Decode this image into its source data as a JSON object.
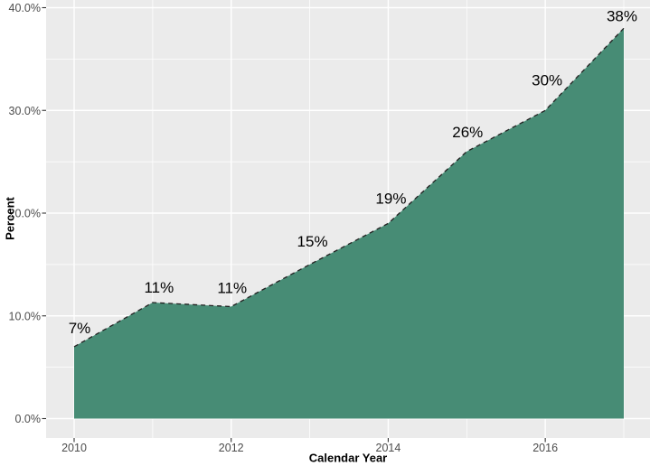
{
  "chart_data": {
    "type": "area",
    "title": "",
    "xlabel": "Calendar Year",
    "ylabel": "Percent",
    "x": [
      2010,
      2011,
      2012,
      2013,
      2014,
      2015,
      2016,
      2017
    ],
    "values": [
      7,
      11.3,
      10.9,
      15,
      19,
      26,
      30,
      38
    ],
    "point_labels": [
      "7%",
      "11%",
      "11%",
      "15%",
      "19%",
      "26%",
      "30%",
      "38%"
    ],
    "label_offsets": {
      "dx": [
        6,
        7,
        1,
        3,
        3,
        1,
        2,
        -2
      ],
      "dy": [
        -15,
        -11,
        -15,
        -20,
        -22,
        -16,
        -28,
        -8
      ]
    },
    "xlim": [
      2010,
      2017
    ],
    "ylim": [
      0,
      40
    ],
    "x_axis": {
      "major_ticks": [
        2010,
        2012,
        2014,
        2016
      ],
      "major_tick_labels": [
        "2010",
        "2012",
        "2014",
        "2016"
      ],
      "minor_ticks": [
        2011,
        2013,
        2015,
        2017
      ]
    },
    "y_axis": {
      "major_ticks": [
        0,
        10,
        20,
        30,
        40
      ],
      "major_tick_labels": [
        "0.0%",
        "10.0%",
        "20.0%",
        "30.0%",
        "40.0%"
      ],
      "minor_ticks": [
        5,
        15,
        25,
        35
      ]
    },
    "grid": "major+minor",
    "legend": "none",
    "line_style": "dashed",
    "colors": {
      "area_fill": "#478C75",
      "line": "#222222",
      "panel_bg": "#EBEBEB",
      "grid": "#FFFFFF",
      "axis_text": "#4D4D4D",
      "tick_mark": "#333333",
      "label_text": "#000000",
      "outer_bg": "#FFFFFF"
    }
  }
}
